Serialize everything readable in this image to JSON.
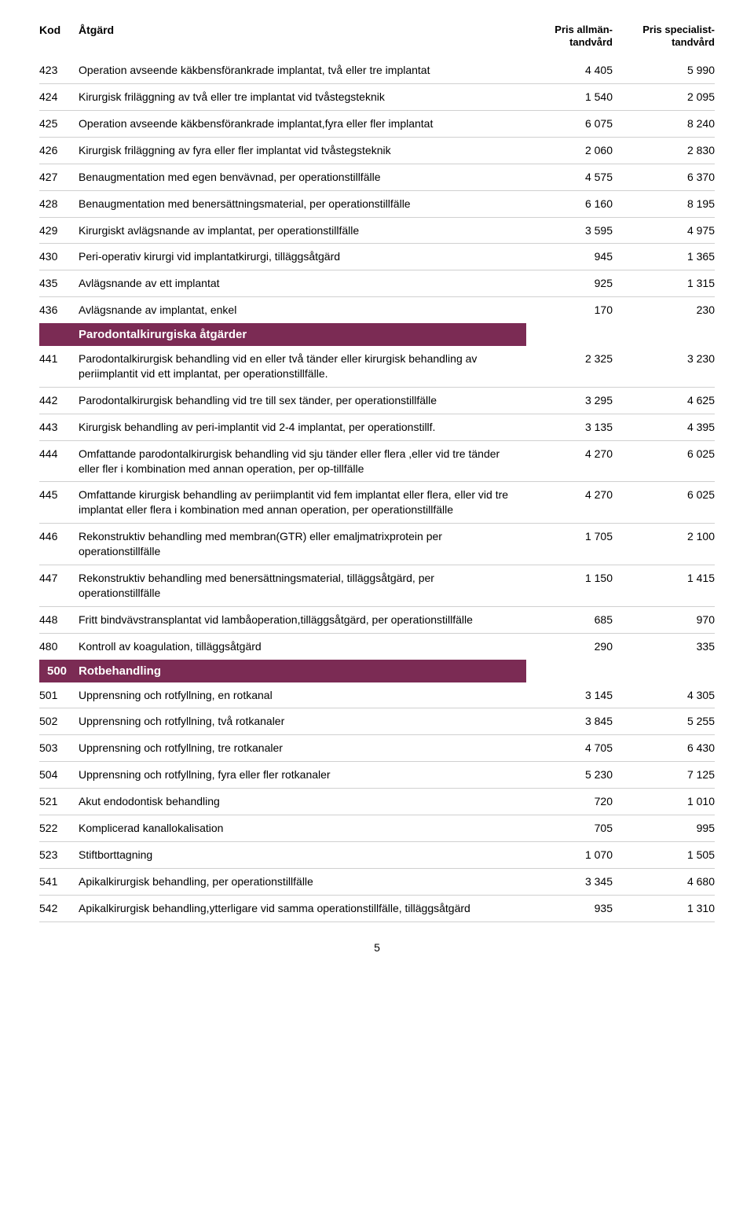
{
  "header": {
    "kod": "Kod",
    "atgard": "Åtgärd",
    "p1a": "Pris allmän-",
    "p1b": "tandvård",
    "p2a": "Pris specialist-",
    "p2b": "tandvård"
  },
  "colors": {
    "section_bg": "#7b2b54",
    "section_fg": "#ffffff",
    "divider": "#d0d0d0"
  },
  "rows": [
    {
      "kod": "423",
      "txt": "Operation avseende käkbensförankrade implantat, två eller tre implantat",
      "p1": "4 405",
      "p2": "5 990"
    },
    {
      "kod": "424",
      "txt": "Kirurgisk friläggning av två eller tre implantat vid tvåstegsteknik",
      "p1": "1 540",
      "p2": "2 095"
    },
    {
      "kod": "425",
      "txt": "Operation avseende käkbensförankrade implantat,fyra eller fler implantat",
      "p1": "6 075",
      "p2": "8 240"
    },
    {
      "kod": "426",
      "txt": "Kirurgisk friläggning av fyra eller fler  implantat vid tvåstegsteknik",
      "p1": "2 060",
      "p2": "2 830"
    },
    {
      "kod": "427",
      "txt": "Benaugmentation med egen benvävnad, per operationstillfälle",
      "p1": "4 575",
      "p2": "6 370"
    },
    {
      "kod": "428",
      "txt": "Benaugmentation med benersättningsmaterial, per operationstillfälle",
      "p1": "6 160",
      "p2": "8 195"
    },
    {
      "kod": "429",
      "txt": "Kirurgiskt avlägsnande av implantat, per operationstillfälle",
      "p1": "3 595",
      "p2": "4 975"
    },
    {
      "kod": "430",
      "txt": "Peri-operativ kirurgi vid implantatkirurgi, tilläggsåtgärd",
      "p1": "945",
      "p2": "1 365"
    },
    {
      "kod": "435",
      "txt": "Avlägsnande av ett implantat",
      "p1": "925",
      "p2": "1 315"
    },
    {
      "kod": "436",
      "txt": "Avlägsnande av implantat, enkel",
      "p1": "170",
      "p2": "230"
    }
  ],
  "section1": {
    "title": "Parodontalkirurgiska åtgärder"
  },
  "rows2": [
    {
      "kod": "441",
      "txt": "Parodontalkirurgisk behandling vid en eller två tänder eller kirurgisk be­handling av periimplantit vid ett implantat, per operationstillfälle.",
      "p1": "2 325",
      "p2": "3 230"
    },
    {
      "kod": "442",
      "txt": "Parodontalkirurgisk behandling vid tre till sex tänder, per operationstillfälle",
      "p1": "3 295",
      "p2": "4 625"
    },
    {
      "kod": "443",
      "txt": "Kirurgisk behandling av peri-implantit vid 2-4 implantat, per operationstillf.",
      "p1": "3 135",
      "p2": "4 395"
    },
    {
      "kod": "444",
      "txt": "Omfattande parodontalkirurgisk behandling vid sju tänder eller flera ,eller vid tre tänder eller fler i kombination med annan operation, per op-tillfälle",
      "p1": "4 270",
      "p2": "6 025"
    },
    {
      "kod": "445",
      "txt": "Omfattande kirurgisk behandling av periimplantit vid fem implantat eller flera, eller vid tre implantat eller flera i kombination med annan operation, per operationstillfälle",
      "p1": "4 270",
      "p2": "6 025"
    },
    {
      "kod": "446",
      "txt": "Rekonstruktiv behandling med membran(GTR) eller emaljmatrixprotein per operationstillfälle",
      "p1": "1 705",
      "p2": "2 100"
    },
    {
      "kod": "447",
      "txt": "Rekonstruktiv behandling med benersättningsmaterial, tilläggsåtgärd, per operationstillfälle",
      "p1": "1 150",
      "p2": "1 415"
    },
    {
      "kod": "448",
      "txt": "Fritt bindvävstransplantat vid lambåoperation,tilläggsåtgärd, per opera­tionstillfälle",
      "p1": "685",
      "p2": "970"
    },
    {
      "kod": "480",
      "txt": "Kontroll av koagulation, tilläggsåtgärd",
      "p1": "290",
      "p2": "335"
    }
  ],
  "section2": {
    "kod": "500",
    "title": "Rotbehandling"
  },
  "rows3": [
    {
      "kod": "501",
      "txt": "Upprensning och rotfyllning, en rotkanal",
      "p1": "3 145",
      "p2": "4 305"
    },
    {
      "kod": "502",
      "txt": "Upprensning och rotfyllning, två rotkanaler",
      "p1": "3 845",
      "p2": "5 255"
    },
    {
      "kod": "503",
      "txt": "Upprensning och rotfyllning, tre rotkanaler",
      "p1": "4 705",
      "p2": "6 430"
    },
    {
      "kod": "504",
      "txt": "Upprensning och rotfyllning, fyra eller fler rotkanaler",
      "p1": "5 230",
      "p2": "7 125"
    },
    {
      "kod": "521",
      "txt": "Akut endodontisk behandling",
      "p1": "720",
      "p2": "1 010"
    },
    {
      "kod": "522",
      "txt": "Komplicerad kanallokalisation",
      "p1": "705",
      "p2": "995"
    },
    {
      "kod": "523",
      "txt": "Stiftborttagning",
      "p1": "1 070",
      "p2": "1 505"
    },
    {
      "kod": "541",
      "txt": "Apikalkirurgisk behandling, per operationstillfälle",
      "p1": "3 345",
      "p2": "4 680"
    },
    {
      "kod": "542",
      "txt": "Apikalkirurgisk behandling,ytterligare vid samma operationstillfälle, tilläggsåtgärd",
      "p1": "935",
      "p2": "1 310"
    }
  ],
  "page": "5"
}
